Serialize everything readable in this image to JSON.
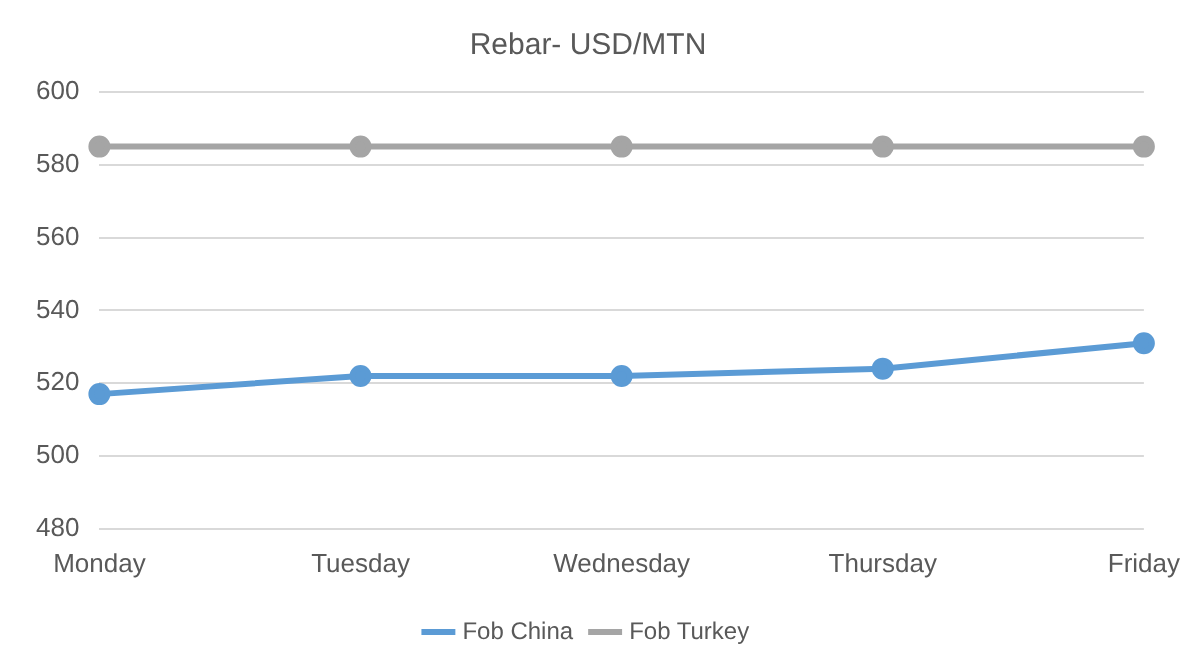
{
  "chart_data": {
    "type": "line",
    "title": "Rebar- USD/MTN",
    "categories": [
      "Monday",
      "Tuesday",
      "Wednesday",
      "Thursday",
      "Friday"
    ],
    "series": [
      {
        "name": "Fob China",
        "color": "#5b9bd5",
        "values": [
          517,
          522,
          522,
          524,
          531
        ]
      },
      {
        "name": "Fob Turkey",
        "color": "#a5a5a5",
        "values": [
          585,
          585,
          585,
          585,
          585
        ]
      }
    ],
    "ylim": [
      480,
      600
    ],
    "yticks": [
      480,
      500,
      520,
      540,
      560,
      580,
      600
    ],
    "grid": "y",
    "legend": "bottom",
    "marker": "circle",
    "line_style": "solid"
  }
}
